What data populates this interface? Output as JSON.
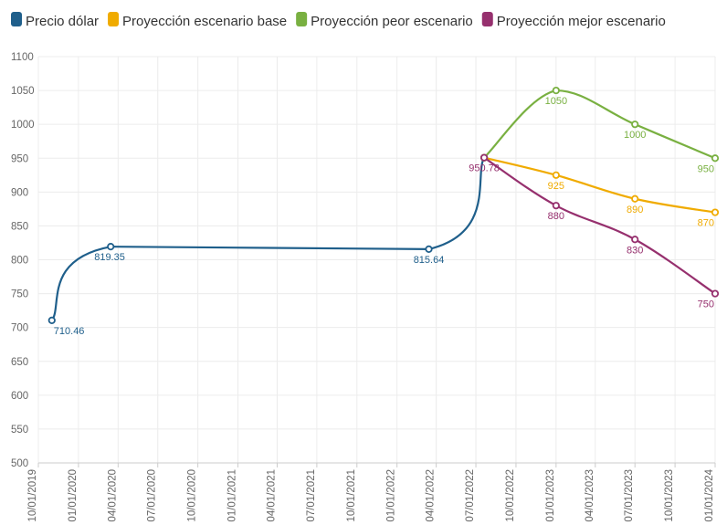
{
  "chart_data": {
    "type": "line",
    "title": "",
    "xlabel": "",
    "ylabel": "",
    "ylim": [
      500,
      1100
    ],
    "yticks": [
      500,
      550,
      600,
      650,
      700,
      750,
      800,
      850,
      900,
      950,
      1000,
      1050,
      1100
    ],
    "xticks": [
      "10/01/2019",
      "01/01/2020",
      "04/01/2020",
      "07/01/2020",
      "10/01/2020",
      "01/01/2021",
      "04/01/2021",
      "07/01/2021",
      "10/01/2021",
      "01/01/2022",
      "04/01/2022",
      "07/01/2022",
      "10/01/2022",
      "01/01/2023",
      "04/01/2023",
      "07/01/2023",
      "10/01/2023",
      "01/01/2024"
    ],
    "grid": true,
    "legend_position": "top",
    "series": [
      {
        "name": "Precio dólar",
        "color": "#1f5f8b",
        "points": [
          {
            "x": "2019-11-01",
            "y": 710.46,
            "label": "710.46"
          },
          {
            "x": "2020-03-15",
            "y": 819.35,
            "label": "819.35"
          },
          {
            "x": "2022-03-15",
            "y": 815.64,
            "label": "815.64"
          },
          {
            "x": "2022-07-20",
            "y": 950.78,
            "label": ""
          }
        ]
      },
      {
        "name": "Proyección escenario base",
        "color": "#f0ab00",
        "points": [
          {
            "x": "2022-07-20",
            "y": 950.78,
            "label": ""
          },
          {
            "x": "2023-01-01",
            "y": 925,
            "label": "925"
          },
          {
            "x": "2023-07-01",
            "y": 890,
            "label": "890"
          },
          {
            "x": "2024-01-01",
            "y": 870,
            "label": "870"
          }
        ]
      },
      {
        "name": "Proyección peor escenario",
        "color": "#79b041",
        "points": [
          {
            "x": "2022-07-20",
            "y": 950.78,
            "label": ""
          },
          {
            "x": "2023-01-01",
            "y": 1050,
            "label": "1050"
          },
          {
            "x": "2023-07-01",
            "y": 1000,
            "label": "1000"
          },
          {
            "x": "2024-01-01",
            "y": 950,
            "label": "950"
          }
        ]
      },
      {
        "name": "Proyección mejor escenario",
        "color": "#96306e",
        "points": [
          {
            "x": "2022-07-20",
            "y": 950.78,
            "label": "950.78"
          },
          {
            "x": "2023-01-01",
            "y": 880,
            "label": "880"
          },
          {
            "x": "2023-07-01",
            "y": 830,
            "label": "830"
          },
          {
            "x": "2024-01-01",
            "y": 750,
            "label": "750"
          }
        ]
      }
    ]
  }
}
